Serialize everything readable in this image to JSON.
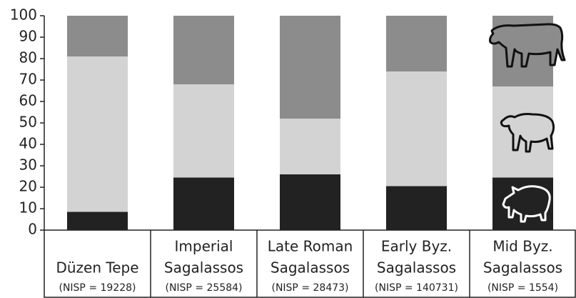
{
  "chart_data": {
    "type": "stacked_bar",
    "categories": [
      [
        "Düzen Tepe"
      ],
      [
        "Imperial",
        "Sagalassos"
      ],
      [
        "Late Roman",
        "Sagalassos"
      ],
      [
        "Early Byz.",
        "Sagalassos"
      ],
      [
        "Mid Byz.",
        "Sagalassos"
      ]
    ],
    "sample_sizes": [
      "(NISP = 19228)",
      "(NISP = 25584)",
      "(NISP = 28473)",
      "(NISP = 140731)",
      "(NISP = 1554)"
    ],
    "series": [
      {
        "color": "#222222",
        "values": [
          8.5,
          24.5,
          26,
          20.5,
          24.5
        ]
      },
      {
        "color": "#d3d3d3",
        "values": [
          72.5,
          43.5,
          26,
          53.5,
          42.5
        ]
      },
      {
        "color": "#8c8c8c",
        "values": [
          19,
          32,
          48,
          26,
          33
        ]
      }
    ],
    "ylim": [
      0,
      100
    ],
    "yticks": [
      0,
      10,
      20,
      30,
      40,
      50,
      60,
      70,
      80,
      90,
      100
    ],
    "grid": false
  }
}
